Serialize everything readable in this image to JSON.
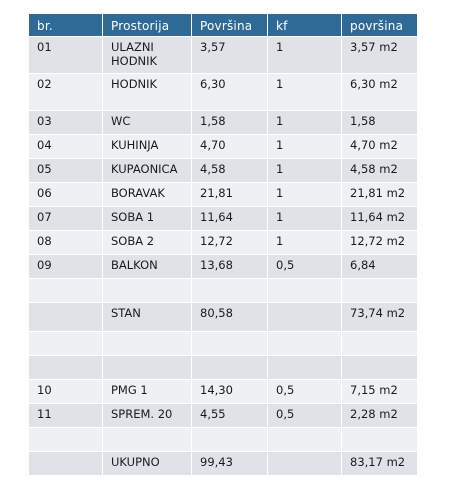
{
  "table": {
    "headers": [
      "br.",
      "Prostorija",
      "Površina",
      "kf",
      "površina"
    ],
    "rows": [
      [
        "01",
        "ULAZNI\nHODNIK",
        "3,57",
        "1",
        "3,57 m2"
      ],
      [
        "02",
        "HODNIK",
        "6,30",
        "1",
        "6,30 m2"
      ],
      [
        "03",
        "WC",
        "1,58",
        "1",
        "1,58"
      ],
      [
        "04",
        "KUHINJA",
        "4,70",
        "1",
        "4,70 m2"
      ],
      [
        "05",
        "KUPAONICA",
        "4,58",
        "1",
        "4,58 m2"
      ],
      [
        "06",
        "BORAVAK",
        "21,81",
        "1",
        "21,81 m2"
      ],
      [
        "07",
        "SOBA 1",
        "11,64",
        "1",
        "11,64 m2"
      ],
      [
        "08",
        "SOBA 2",
        "12,72",
        "1",
        "12,72 m2"
      ],
      [
        "09",
        "BALKON",
        "13,68",
        "0,5",
        "6,84"
      ],
      [
        "",
        "",
        "",
        "",
        ""
      ],
      [
        "",
        "STAN",
        "80,58",
        "",
        "73,74 m2"
      ],
      [
        "",
        "",
        "",
        "",
        ""
      ],
      [
        "",
        "",
        "",
        "",
        ""
      ],
      [
        "10",
        "PMG 1",
        "14,30",
        "0,5",
        "7,15 m2"
      ],
      [
        "11",
        "SPREM. 20",
        "4,55",
        "0,5",
        "2,28 m2"
      ],
      [
        "",
        "",
        "",
        "",
        ""
      ],
      [
        "",
        "UKUPNO",
        "99,43",
        "",
        "83,17 m2"
      ]
    ]
  }
}
